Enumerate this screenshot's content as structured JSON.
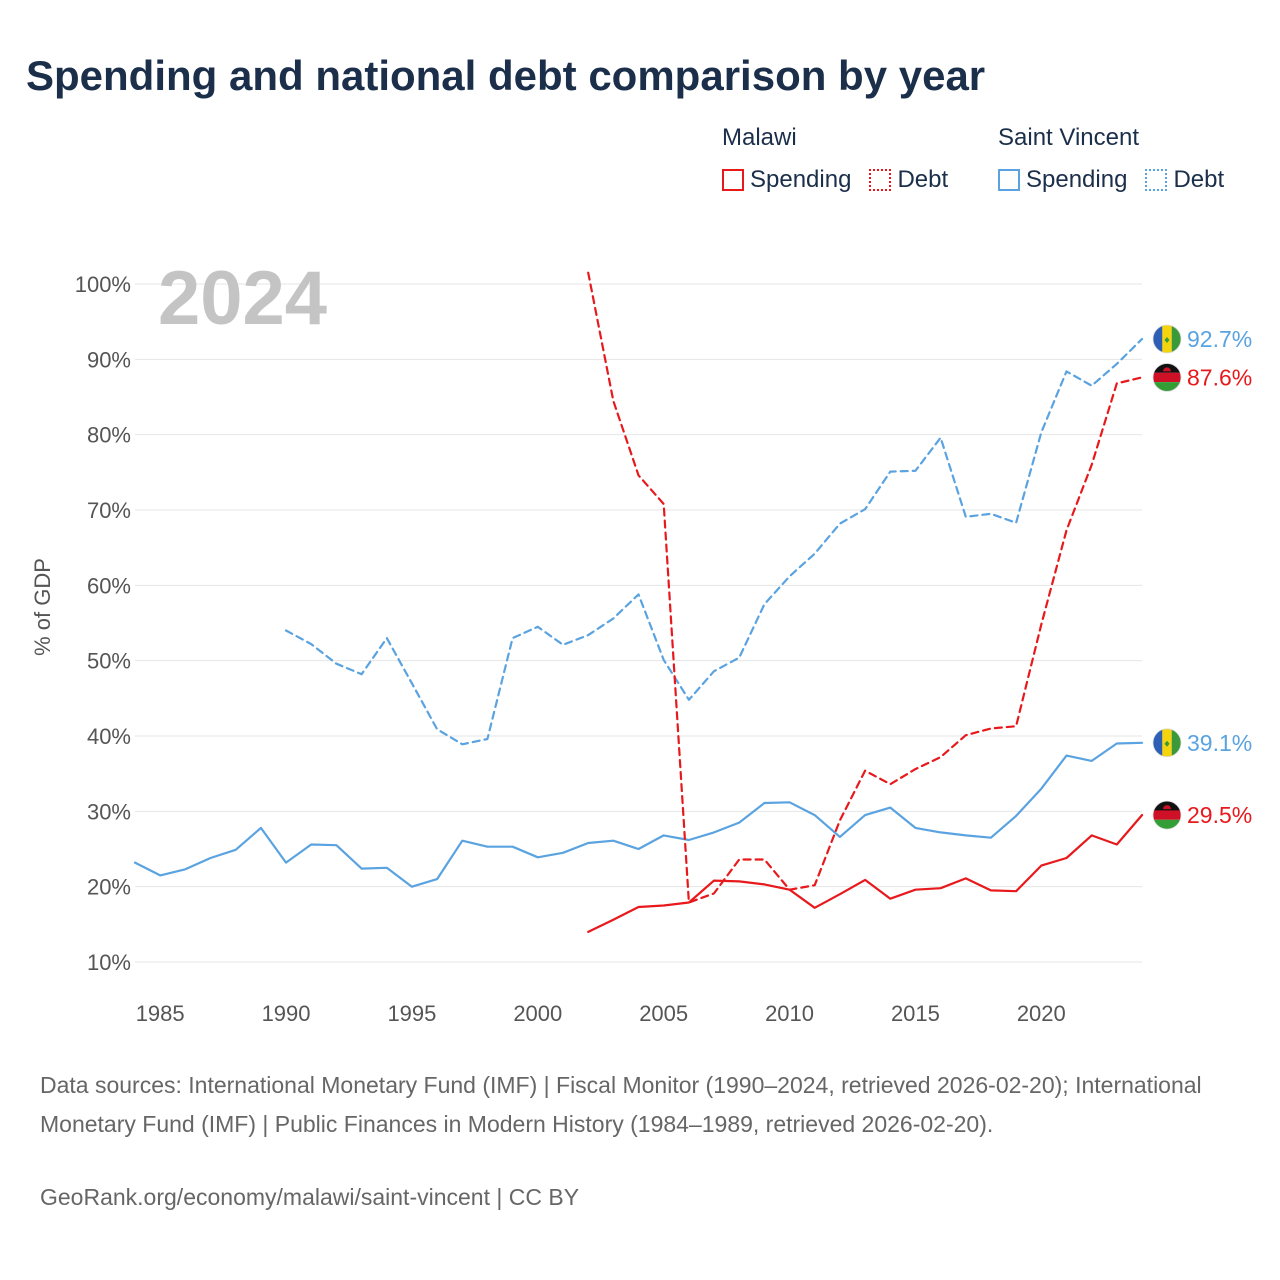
{
  "title": "Spending and national debt comparison by year",
  "legend": {
    "groups": [
      {
        "name": "Malawi",
        "color": "#e8191c",
        "items": [
          "Spending",
          "Debt"
        ]
      },
      {
        "name": "Saint Vincent",
        "color": "#5aa3e0",
        "items": [
          "Spending",
          "Debt"
        ]
      }
    ]
  },
  "chart_data": {
    "type": "line",
    "title": "Spending and national debt comparison by year",
    "year_label": "2024",
    "ylabel": "% of GDP",
    "xlim": [
      1984,
      2024
    ],
    "ylim": [
      10,
      100
    ],
    "x_ticks": [
      1985,
      1990,
      1995,
      2000,
      2005,
      2010,
      2015,
      2020
    ],
    "x_tick_labels": [
      "1985",
      "1990",
      "1995",
      "2000",
      "2005",
      "2010",
      "2015",
      "2020"
    ],
    "y_ticks": [
      10,
      20,
      30,
      40,
      50,
      60,
      70,
      80,
      90,
      100
    ],
    "y_tick_labels": [
      "10%",
      "20%",
      "30%",
      "40%",
      "50%",
      "60%",
      "70%",
      "80%",
      "90%",
      "100%"
    ],
    "grid": true,
    "series": [
      {
        "name": "Saint Vincent Spending",
        "country": "Saint Vincent",
        "color": "#5aa3e0",
        "style": "solid",
        "x": [
          1984,
          1985,
          1986,
          1987,
          1988,
          1989,
          1990,
          1991,
          1992,
          1993,
          1994,
          1995,
          1996,
          1997,
          1998,
          1999,
          2000,
          2001,
          2002,
          2003,
          2004,
          2005,
          2006,
          2007,
          2008,
          2009,
          2010,
          2011,
          2012,
          2013,
          2014,
          2015,
          2016,
          2017,
          2018,
          2019,
          2020,
          2021,
          2022,
          2023,
          2024
        ],
        "values": [
          23.2,
          21.5,
          22.3,
          23.8,
          24.9,
          27.8,
          23.2,
          25.6,
          25.5,
          22.4,
          22.5,
          20.0,
          21.0,
          26.1,
          25.3,
          25.3,
          23.9,
          24.5,
          25.8,
          26.1,
          25.0,
          26.8,
          26.2,
          27.2,
          28.5,
          31.1,
          31.2,
          29.5,
          26.6,
          29.5,
          30.5,
          27.8,
          27.2,
          26.8,
          26.5,
          29.4,
          33.0,
          37.4,
          36.7,
          39.0,
          39.1
        ],
        "end_label": "39.1%"
      },
      {
        "name": "Saint Vincent Debt",
        "country": "Saint Vincent",
        "color": "#5aa3e0",
        "style": "dashed",
        "x": [
          1990,
          1991,
          1992,
          1993,
          1994,
          1995,
          1996,
          1997,
          1998,
          1999,
          2000,
          2001,
          2002,
          2003,
          2004,
          2005,
          2006,
          2007,
          2008,
          2009,
          2010,
          2011,
          2012,
          2013,
          2014,
          2015,
          2016,
          2017,
          2018,
          2019,
          2020,
          2021,
          2022,
          2023,
          2024
        ],
        "values": [
          54.0,
          52.2,
          49.6,
          48.2,
          53.0,
          47.0,
          40.9,
          38.9,
          39.6,
          53.0,
          54.5,
          52.1,
          53.4,
          55.6,
          58.8,
          50.1,
          44.8,
          48.6,
          50.4,
          57.5,
          61.2,
          64.2,
          68.2,
          70.1,
          75.1,
          75.2,
          79.6,
          69.1,
          69.5,
          68.3,
          80.3,
          88.4,
          86.5,
          89.4,
          92.7
        ],
        "end_label": "92.7%"
      },
      {
        "name": "Malawi Spending",
        "country": "Malawi",
        "color": "#e8191c",
        "style": "solid",
        "x": [
          2002,
          2003,
          2004,
          2005,
          2006,
          2007,
          2008,
          2009,
          2010,
          2011,
          2012,
          2013,
          2014,
          2015,
          2016,
          2017,
          2018,
          2019,
          2020,
          2021,
          2022,
          2023,
          2024
        ],
        "values": [
          14.0,
          15.6,
          17.3,
          17.5,
          17.9,
          20.8,
          20.7,
          20.3,
          19.6,
          17.2,
          19.0,
          20.9,
          18.4,
          19.6,
          19.8,
          21.1,
          19.5,
          19.4,
          22.8,
          23.8,
          26.8,
          25.6,
          29.5
        ],
        "end_label": "29.5%"
      },
      {
        "name": "Malawi Debt",
        "country": "Malawi",
        "color": "#e8191c",
        "style": "dashed",
        "x": [
          2002,
          2003,
          2004,
          2005,
          2006,
          2007,
          2008,
          2009,
          2010,
          2011,
          2012,
          2013,
          2014,
          2015,
          2016,
          2017,
          2018,
          2019,
          2020,
          2021,
          2022,
          2023,
          2024
        ],
        "values": [
          101.5,
          84.5,
          74.6,
          70.8,
          17.9,
          19.1,
          23.6,
          23.6,
          19.6,
          20.2,
          28.8,
          35.4,
          33.6,
          35.6,
          37.2,
          40.1,
          41.0,
          41.3,
          54.8,
          67.3,
          76.0,
          86.8,
          87.6
        ],
        "end_label": "87.6%"
      }
    ]
  },
  "sources": "Data sources: International Monetary Fund (IMF) | Fiscal Monitor (1990–2024, retrieved 2026-02-20); International Monetary Fund (IMF) | Public Finances in Modern History (1984–1989, retrieved 2026-02-20).",
  "credit": "GeoRank.org/economy/malawi/saint-vincent | CC BY"
}
